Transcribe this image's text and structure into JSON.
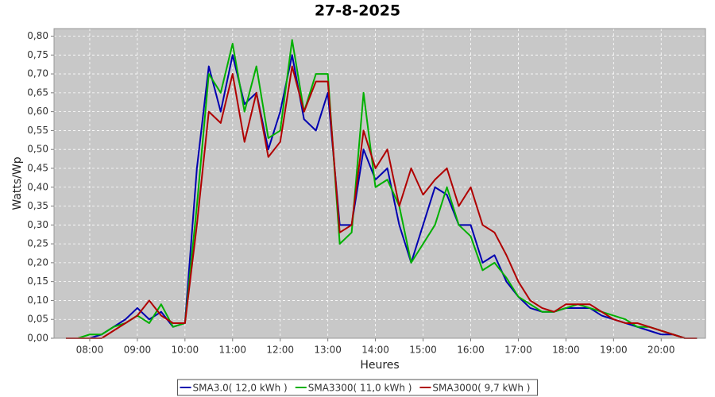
{
  "chart_data": {
    "type": "line",
    "title": "27-8-2025",
    "x_label": "Heures",
    "y_label": "Watts/Wp",
    "x": [
      7.5,
      7.75,
      8,
      8.25,
      8.5,
      8.75,
      9,
      9.25,
      9.5,
      9.75,
      10,
      10.25,
      10.5,
      10.75,
      11,
      11.25,
      11.5,
      11.75,
      12,
      12.25,
      12.5,
      12.75,
      13,
      13.25,
      13.5,
      13.75,
      14,
      14.25,
      14.5,
      14.75,
      15,
      15.25,
      15.5,
      15.75,
      16,
      16.25,
      16.5,
      16.75,
      17,
      17.25,
      17.5,
      17.75,
      18,
      18.25,
      18.5,
      18.75,
      19,
      19.25,
      19.5,
      19.75,
      20,
      20.25,
      20.5,
      20.75
    ],
    "series": [
      {
        "name": "SMA3.0( 12,0 kWh )",
        "color": "#0000b0",
        "values": [
          0,
          0,
          0,
          0.01,
          0.03,
          0.05,
          0.08,
          0.05,
          0.07,
          0.03,
          0.04,
          0.45,
          0.72,
          0.6,
          0.75,
          0.62,
          0.65,
          0.5,
          0.6,
          0.75,
          0.58,
          0.55,
          0.65,
          0.3,
          0.3,
          0.5,
          0.42,
          0.45,
          0.3,
          0.2,
          0.3,
          0.4,
          0.38,
          0.3,
          0.3,
          0.2,
          0.22,
          0.15,
          0.11,
          0.08,
          0.07,
          0.07,
          0.08,
          0.08,
          0.08,
          0.06,
          0.05,
          0.04,
          0.03,
          0.02,
          0.01,
          0.01,
          0,
          0
        ]
      },
      {
        "name": "SMA3300( 11,0 kWh )",
        "color": "#00b000",
        "values": [
          0,
          0,
          0.01,
          0.01,
          0.03,
          0.04,
          0.06,
          0.04,
          0.09,
          0.03,
          0.04,
          0.35,
          0.7,
          0.65,
          0.78,
          0.6,
          0.72,
          0.53,
          0.55,
          0.79,
          0.6,
          0.7,
          0.7,
          0.25,
          0.28,
          0.65,
          0.4,
          0.42,
          0.35,
          0.2,
          0.25,
          0.3,
          0.4,
          0.3,
          0.27,
          0.18,
          0.2,
          0.16,
          0.11,
          0.09,
          0.07,
          0.07,
          0.08,
          0.09,
          0.08,
          0.07,
          0.06,
          0.05,
          0.03,
          0.03,
          0.02,
          0.01,
          0,
          0
        ]
      },
      {
        "name": "SMA3000( 9,7 kWh )",
        "color": "#b00000",
        "values": [
          0,
          0,
          0,
          0,
          0.02,
          0.04,
          0.06,
          0.1,
          0.06,
          0.04,
          0.04,
          0.3,
          0.6,
          0.57,
          0.7,
          0.52,
          0.65,
          0.48,
          0.52,
          0.72,
          0.6,
          0.68,
          0.68,
          0.28,
          0.3,
          0.55,
          0.45,
          0.5,
          0.35,
          0.45,
          0.38,
          0.42,
          0.45,
          0.35,
          0.4,
          0.3,
          0.28,
          0.22,
          0.15,
          0.1,
          0.08,
          0.07,
          0.09,
          0.09,
          0.09,
          0.07,
          0.05,
          0.04,
          0.04,
          0.03,
          0.02,
          0.01,
          0,
          0
        ]
      }
    ],
    "xlim": [
      7.25,
      20.93
    ],
    "ylim": [
      0,
      0.82
    ],
    "xticks": [
      {
        "value": 8,
        "label": "08:00"
      },
      {
        "value": 9,
        "label": "09:00"
      },
      {
        "value": 10,
        "label": "10:00"
      },
      {
        "value": 11,
        "label": "11:00"
      },
      {
        "value": 12,
        "label": "12:00"
      },
      {
        "value": 13,
        "label": "13:00"
      },
      {
        "value": 14,
        "label": "14:00"
      },
      {
        "value": 15,
        "label": "15:00"
      },
      {
        "value": 16,
        "label": "16:00"
      },
      {
        "value": 17,
        "label": "17:00"
      },
      {
        "value": 18,
        "label": "18:00"
      },
      {
        "value": 19,
        "label": "19:00"
      },
      {
        "value": 20,
        "label": "20:00"
      }
    ],
    "yticks": [
      {
        "value": 0,
        "label": "0,00"
      },
      {
        "value": 0.05,
        "label": "0,05"
      },
      {
        "value": 0.1,
        "label": "0,10"
      },
      {
        "value": 0.15,
        "label": "0,15"
      },
      {
        "value": 0.2,
        "label": "0,20"
      },
      {
        "value": 0.25,
        "label": "0,25"
      },
      {
        "value": 0.3,
        "label": "0,30"
      },
      {
        "value": 0.35,
        "label": "0,35"
      },
      {
        "value": 0.4,
        "label": "0,40"
      },
      {
        "value": 0.45,
        "label": "0,45"
      },
      {
        "value": 0.5,
        "label": "0,50"
      },
      {
        "value": 0.55,
        "label": "0,55"
      },
      {
        "value": 0.6,
        "label": "0,60"
      },
      {
        "value": 0.65,
        "label": "0,65"
      },
      {
        "value": 0.7,
        "label": "0,70"
      },
      {
        "value": 0.75,
        "label": "0,75"
      },
      {
        "value": 0.8,
        "label": "0,80"
      }
    ],
    "grid": true,
    "legend": "bottom"
  }
}
